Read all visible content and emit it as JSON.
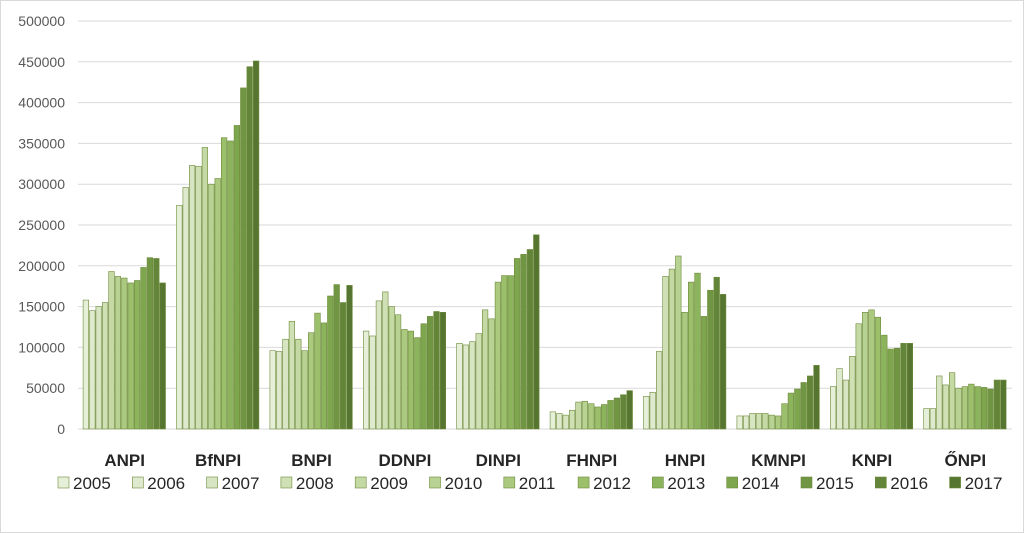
{
  "chart_data": {
    "type": "bar",
    "title": "",
    "xlabel": "",
    "ylabel": "",
    "ylim": [
      0,
      500000
    ],
    "yticks": [
      0,
      50000,
      100000,
      150000,
      200000,
      250000,
      300000,
      350000,
      400000,
      450000,
      500000
    ],
    "ytick_labels": [
      "0",
      "50000",
      "100000",
      "150000",
      "200000",
      "250000",
      "300000",
      "350000",
      "400000",
      "450000",
      "500000"
    ],
    "grid": true,
    "legend_position": "bottom",
    "categories": [
      "ANPI",
      "BfNPI",
      "BNPI",
      "DDNPI",
      "DINPI",
      "FHNPI",
      "HNPI",
      "KMNPI",
      "KNPI",
      "ŐNPI"
    ],
    "series": [
      {
        "name": "2005",
        "color": "#e6efd8",
        "values": [
          158000,
          274000,
          96000,
          120000,
          105000,
          21000,
          40000,
          16000,
          52000,
          25000
        ]
      },
      {
        "name": "2006",
        "color": "#dfe9cd",
        "values": [
          145000,
          296000,
          95000,
          114000,
          103000,
          19000,
          45000,
          16000,
          74000,
          25000
        ]
      },
      {
        "name": "2007",
        "color": "#d8e5c2",
        "values": [
          150000,
          323000,
          110000,
          157000,
          107000,
          17000,
          95000,
          19000,
          60000,
          65000
        ]
      },
      {
        "name": "2008",
        "color": "#cfe0b4",
        "values": [
          155000,
          322000,
          132000,
          168000,
          117000,
          23000,
          187000,
          19000,
          89000,
          54000
        ]
      },
      {
        "name": "2009",
        "color": "#c4d9a4",
        "values": [
          193000,
          345000,
          110000,
          150000,
          146000,
          33000,
          196000,
          19000,
          129000,
          69000
        ]
      },
      {
        "name": "2010",
        "color": "#b8d293",
        "values": [
          187000,
          300000,
          96000,
          140000,
          135000,
          34000,
          212000,
          17000,
          143000,
          50000
        ]
      },
      {
        "name": "2011",
        "color": "#abc97f",
        "values": [
          185000,
          307000,
          118000,
          122000,
          180000,
          31000,
          143000,
          16000,
          146000,
          52000
        ]
      },
      {
        "name": "2012",
        "color": "#9cbf6c",
        "values": [
          179000,
          357000,
          142000,
          120000,
          188000,
          27000,
          180000,
          31000,
          137000,
          55000
        ]
      },
      {
        "name": "2013",
        "color": "#8cb45c",
        "values": [
          182000,
          353000,
          130000,
          112000,
          188000,
          30000,
          191000,
          44000,
          115000,
          52000
        ]
      },
      {
        "name": "2014",
        "color": "#7ea64e",
        "values": [
          198000,
          372000,
          163000,
          129000,
          209000,
          35000,
          138000,
          49000,
          98000,
          51000
        ]
      },
      {
        "name": "2015",
        "color": "#709643",
        "values": [
          210000,
          418000,
          177000,
          138000,
          214000,
          38000,
          170000,
          57000,
          99000,
          49000
        ]
      },
      {
        "name": "2016",
        "color": "#638539",
        "values": [
          209000,
          444000,
          155000,
          144000,
          220000,
          42000,
          186000,
          65000,
          105000,
          60000
        ]
      },
      {
        "name": "2017",
        "color": "#567530",
        "values": [
          179000,
          451000,
          176000,
          143000,
          238000,
          47000,
          165000,
          78000,
          105000,
          60000
        ]
      }
    ]
  }
}
